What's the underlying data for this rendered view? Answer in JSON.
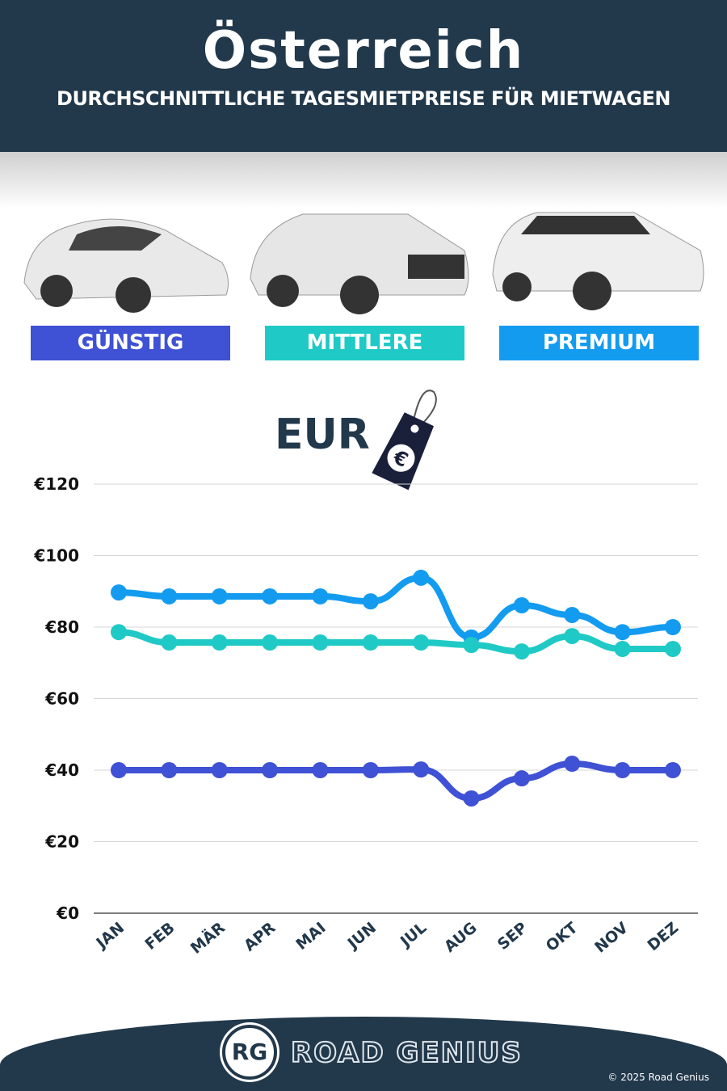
{
  "header": {
    "title": "Österreich",
    "subtitle": "DURCHSCHNITTLICHE TAGESMIETPREISE FÜR MIETWAGEN"
  },
  "categories": [
    {
      "label": "GÜNSTIG",
      "color": "#3f51d4"
    },
    {
      "label": "MITTLERE",
      "color": "#1fcac6"
    },
    {
      "label": "PREMIUM",
      "color": "#139bf0"
    }
  ],
  "currency": {
    "label": "EUR",
    "symbol": "€"
  },
  "chart_data": {
    "type": "line",
    "categories": [
      "JAN",
      "FEB",
      "MÄR",
      "APR",
      "MAI",
      "JUN",
      "JUL",
      "AUG",
      "SEP",
      "OKT",
      "NOV",
      "DEZ"
    ],
    "ylim": [
      0,
      120
    ],
    "yticks": [
      "€0",
      "€20",
      "€40",
      "€60",
      "€80",
      "€100",
      "€120"
    ],
    "grid": true,
    "series": [
      {
        "name": "PREMIUM",
        "color": "#139bf0",
        "values": [
          89.7,
          88.6,
          88.6,
          88.6,
          88.6,
          87.2,
          93.8,
          77.1,
          86.1,
          83.4,
          78.6,
          80.0
        ]
      },
      {
        "name": "MITTLERE",
        "color": "#1fcac6",
        "values": [
          78.6,
          75.7,
          75.7,
          75.7,
          75.7,
          75.7,
          75.7,
          75.0,
          73.2,
          77.5,
          73.9,
          73.9
        ]
      },
      {
        "name": "GÜNSTIG",
        "color": "#3f51d4",
        "values": [
          40.0,
          40.0,
          40.0,
          40.0,
          40.0,
          40.0,
          40.2,
          32.1,
          37.7,
          41.8,
          40.0,
          40.0
        ]
      }
    ]
  },
  "footer": {
    "logo": "RG",
    "brand": "ROAD GENIUS",
    "copyright": "© 2025 Road Genius"
  }
}
